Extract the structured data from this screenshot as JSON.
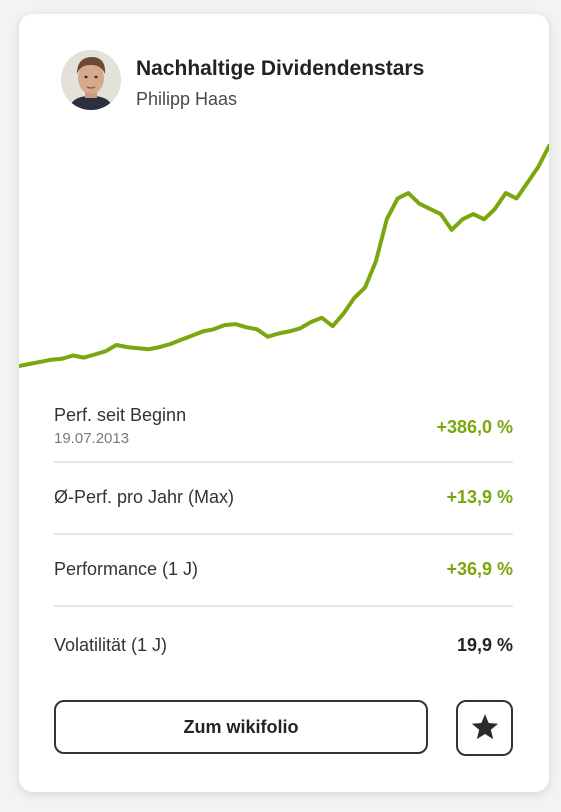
{
  "card": {
    "title": "Nachhaltige Dividendenstars",
    "author": "Philipp Haas"
  },
  "colors": {
    "positive": "#7aa70e",
    "neutral": "#232323",
    "chart_line": "#7aa70e"
  },
  "chart_data": {
    "type": "line",
    "series": [
      {
        "values": [
          100,
          102,
          104,
          106,
          107,
          110,
          108,
          111,
          114,
          120,
          118,
          117,
          116,
          118,
          121,
          125,
          129,
          133,
          135,
          139,
          140,
          137,
          135,
          128,
          131,
          133,
          136,
          142,
          146,
          138,
          150,
          165,
          175,
          200,
          240,
          260,
          265,
          255,
          250,
          245,
          230,
          240,
          245,
          240,
          250,
          265,
          260,
          275,
          290,
          310
        ]
      }
    ]
  },
  "stats": [
    {
      "label": "Perf. seit Beginn",
      "sub": "19.07.2013",
      "value": "+386,0 %",
      "tone": "positive"
    },
    {
      "label": "Ø-Perf. pro Jahr (Max)",
      "value": "+13,9 %",
      "tone": "positive"
    },
    {
      "label": "Performance (1 J)",
      "value": "+36,9 %",
      "tone": "positive"
    },
    {
      "label": "Volatilität (1 J)",
      "value": "19,9 %",
      "tone": "neutral"
    }
  ],
  "actions": {
    "primary_label": "Zum wikifolio",
    "favorite_icon": "star-icon"
  }
}
